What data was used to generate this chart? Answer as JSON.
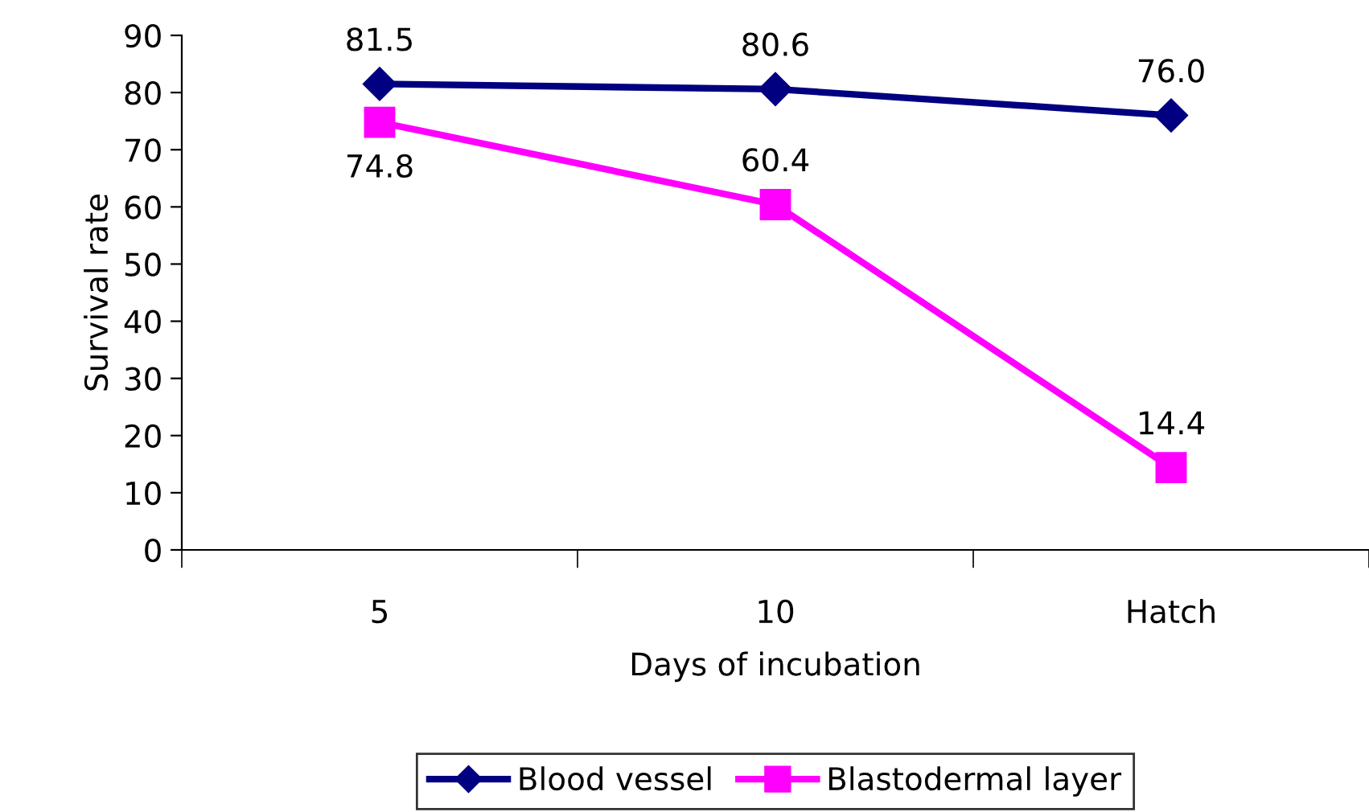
{
  "chart_data": {
    "type": "line",
    "xlabel": "Days of incubation",
    "ylabel": "Survival rate",
    "categories": [
      "5",
      "10",
      "Hatch"
    ],
    "series": [
      {
        "name": "Blood vessel",
        "color": "#000080",
        "marker": "diamond",
        "values": [
          81.5,
          80.6,
          76.0
        ],
        "value_labels": [
          "81.5",
          "80.6",
          "76.0"
        ]
      },
      {
        "name": "Blastodermal layer",
        "color": "#ff00ff",
        "marker": "square",
        "values": [
          74.8,
          60.4,
          14.4
        ],
        "value_labels": [
          "74.8",
          "60.4",
          "14.4"
        ]
      }
    ],
    "ylim": [
      0,
      90
    ],
    "yticks": [
      0,
      10,
      20,
      30,
      40,
      50,
      60,
      70,
      80,
      90
    ],
    "grid": false,
    "legend": "bottom",
    "line_style": "solid"
  }
}
